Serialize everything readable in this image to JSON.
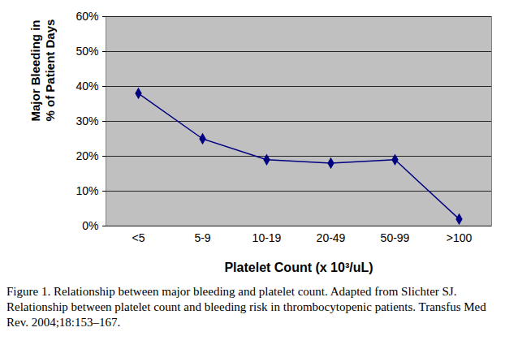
{
  "chart_data": {
    "type": "line",
    "caption": "Figure 1. Relationship between major bleeding and platelet count. Adapted from Slichter SJ. Relationship between platelet count and bleeding risk in thrombocytopenic patients. Transfus Med Rev. 2004;18:153–167.",
    "x_label": "Platelet Count (x 10³/uL)",
    "y_label": "Major Bleeding in\n% of Patient Days",
    "categories": [
      "<5",
      "5-9",
      "10-19",
      "20-49",
      "50-99",
      ">100"
    ],
    "values": [
      38,
      25,
      19,
      18,
      19,
      2
    ],
    "color": "#000080",
    "marker": "diamond",
    "ylim": [
      0,
      60
    ],
    "yticks": [
      {
        "value": 0,
        "label": "0%"
      },
      {
        "value": 10,
        "label": "10%"
      },
      {
        "value": 20,
        "label": "20%"
      },
      {
        "value": 30,
        "label": "30%"
      },
      {
        "value": 40,
        "label": "40%"
      },
      {
        "value": 50,
        "label": "50%"
      },
      {
        "value": 60,
        "label": "60%"
      }
    ],
    "grid": true
  }
}
